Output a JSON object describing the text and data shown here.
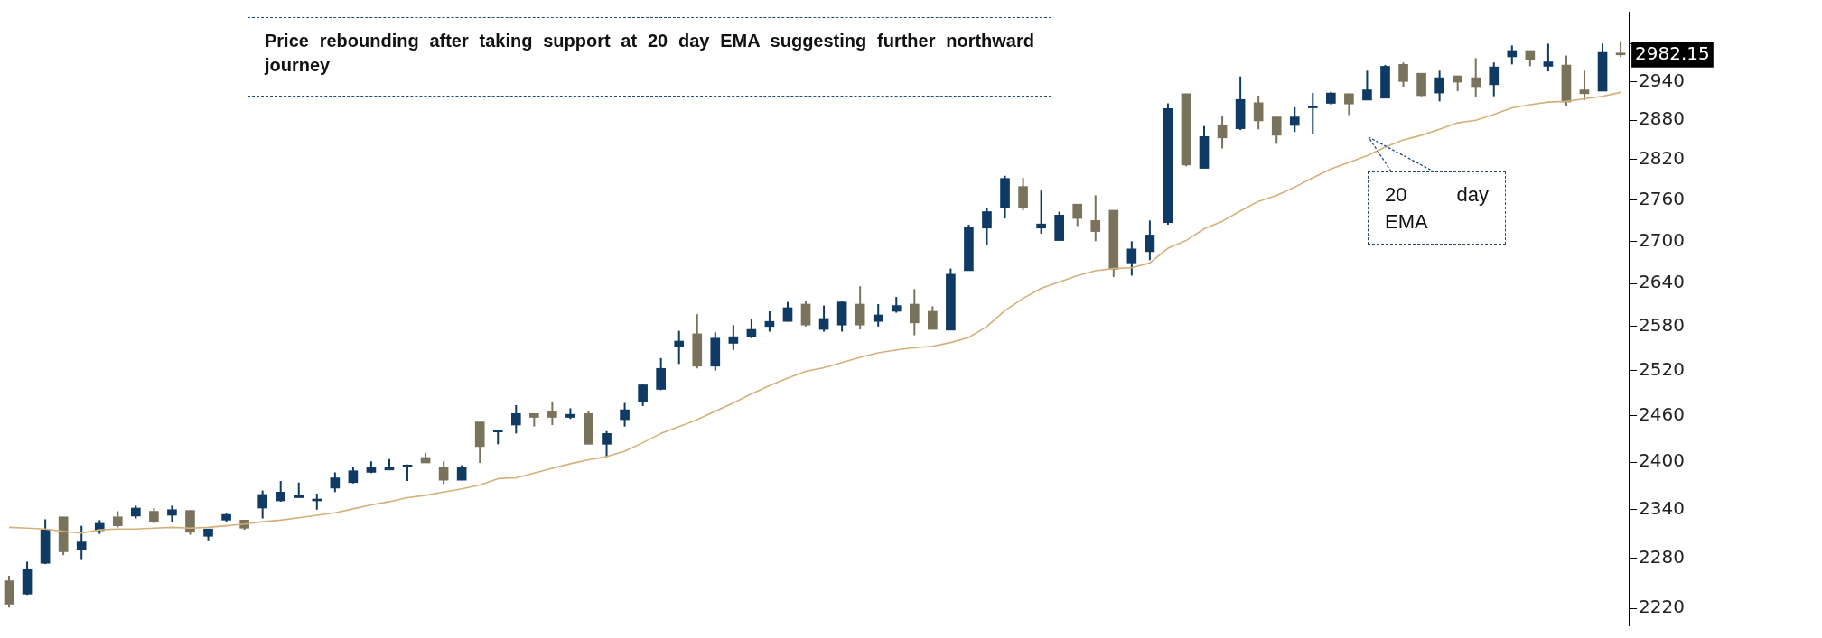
{
  "chart_data": {
    "type": "candlestick",
    "categories": [
      null,
      null,
      null,
      null,
      null,
      null,
      null,
      null,
      null,
      null,
      null,
      null,
      null,
      null,
      null,
      null,
      null,
      null,
      null,
      null,
      null,
      null,
      null,
      null,
      null,
      null,
      null,
      null,
      null,
      null,
      null,
      null,
      null,
      null,
      null,
      null,
      null,
      null,
      null,
      null,
      null,
      null,
      null,
      null,
      null,
      null,
      null,
      null,
      null,
      null,
      null,
      null,
      null,
      null,
      null,
      null,
      null,
      null,
      null,
      null,
      null,
      null,
      null,
      null,
      null,
      null,
      null,
      null,
      null,
      null,
      null,
      null,
      null,
      null,
      null,
      null,
      null,
      null,
      null,
      null,
      null,
      null,
      null,
      null,
      null,
      null,
      null,
      null,
      null,
      null
    ],
    "ohlc": [
      [
        2253,
        2259,
        2221,
        2225
      ],
      [
        2237,
        2276,
        2236,
        2267
      ],
      [
        2274,
        2328,
        2273,
        2315
      ],
      [
        2331,
        2331,
        2284,
        2288
      ],
      [
        2290,
        2320,
        2278,
        2300
      ],
      [
        2314,
        2327,
        2310,
        2323
      ],
      [
        2331,
        2338,
        2318,
        2320
      ],
      [
        2332,
        2345,
        2329,
        2342
      ],
      [
        2338,
        2342,
        2323,
        2325
      ],
      [
        2333,
        2345,
        2325,
        2340
      ],
      [
        2339,
        2339,
        2309,
        2312
      ],
      [
        2307,
        2316,
        2302,
        2316
      ],
      [
        2327,
        2335,
        2325,
        2334
      ],
      [
        2327,
        2327,
        2315,
        2317
      ],
      [
        2342,
        2364,
        2329,
        2359
      ],
      [
        2351,
        2376,
        2350,
        2362
      ],
      [
        2355,
        2374,
        2355,
        2358
      ],
      [
        2351,
        2360,
        2340,
        2352
      ],
      [
        2367,
        2387,
        2362,
        2380
      ],
      [
        2374,
        2394,
        2373,
        2389
      ],
      [
        2387,
        2401,
        2386,
        2394
      ],
      [
        2390,
        2404,
        2390,
        2394
      ],
      [
        2394,
        2397,
        2376,
        2395
      ],
      [
        2406,
        2412,
        2399,
        2399
      ],
      [
        2394,
        2401,
        2372,
        2377
      ],
      [
        2377,
        2396,
        2377,
        2394
      ],
      [
        2452,
        2452,
        2399,
        2420
      ],
      [
        2439,
        2442,
        2423,
        2440
      ],
      [
        2448,
        2474,
        2437,
        2463
      ],
      [
        2463,
        2463,
        2446,
        2458
      ],
      [
        2466,
        2479,
        2448,
        2458
      ],
      [
        2458,
        2470,
        2456,
        2462
      ],
      [
        2463,
        2466,
        2423,
        2423
      ],
      [
        2423,
        2440,
        2407,
        2437
      ],
      [
        2455,
        2477,
        2446,
        2468
      ],
      [
        2479,
        2502,
        2473,
        2501
      ],
      [
        2495,
        2537,
        2494,
        2523
      ],
      [
        2553,
        2574,
        2529,
        2560
      ],
      [
        2570,
        2597,
        2523,
        2526
      ],
      [
        2526,
        2572,
        2520,
        2564
      ],
      [
        2557,
        2582,
        2548,
        2566
      ],
      [
        2566,
        2591,
        2564,
        2576
      ],
      [
        2580,
        2601,
        2573,
        2587
      ],
      [
        2587,
        2614,
        2587,
        2606
      ],
      [
        2611,
        2615,
        2580,
        2582
      ],
      [
        2576,
        2609,
        2573,
        2591
      ],
      [
        2582,
        2615,
        2573,
        2614
      ],
      [
        2611,
        2636,
        2576,
        2582
      ],
      [
        2587,
        2611,
        2580,
        2596
      ],
      [
        2601,
        2621,
        2599,
        2609
      ],
      [
        2611,
        2632,
        2568,
        2585
      ],
      [
        2601,
        2608,
        2576,
        2576
      ],
      [
        2575,
        2661,
        2575,
        2653
      ],
      [
        2658,
        2724,
        2658,
        2720
      ],
      [
        2719,
        2748,
        2694,
        2743
      ],
      [
        2749,
        2796,
        2733,
        2792
      ],
      [
        2780,
        2793,
        2745,
        2749
      ],
      [
        2719,
        2774,
        2711,
        2725
      ],
      [
        2701,
        2743,
        2701,
        2738
      ],
      [
        2754,
        2754,
        2722,
        2733
      ],
      [
        2730,
        2767,
        2700,
        2714
      ],
      [
        2745,
        2745,
        2649,
        2660
      ],
      [
        2669,
        2700,
        2651,
        2689
      ],
      [
        2685,
        2730,
        2673,
        2709
      ],
      [
        2727,
        2906,
        2724,
        2898
      ],
      [
        2921,
        2921,
        2810,
        2812
      ],
      [
        2807,
        2871,
        2807,
        2855
      ],
      [
        2873,
        2887,
        2837,
        2853
      ],
      [
        2867,
        2948,
        2865,
        2912
      ],
      [
        2907,
        2918,
        2866,
        2879
      ],
      [
        2885,
        2885,
        2844,
        2857
      ],
      [
        2872,
        2900,
        2862,
        2885
      ],
      [
        2899,
        2922,
        2859,
        2900
      ],
      [
        2906,
        2924,
        2904,
        2922
      ],
      [
        2921,
        2921,
        2888,
        2905
      ],
      [
        2911,
        2957,
        2911,
        2927
      ],
      [
        2914,
        2966,
        2914,
        2964
      ],
      [
        2967,
        2970,
        2932,
        2940
      ],
      [
        2953,
        2953,
        2917,
        2918
      ],
      [
        2922,
        2957,
        2909,
        2946
      ],
      [
        2949,
        2949,
        2925,
        2939
      ],
      [
        2946,
        2977,
        2916,
        2932
      ],
      [
        2935,
        2970,
        2917,
        2963
      ],
      [
        2979,
        2997,
        2967,
        2989
      ],
      [
        2989,
        2989,
        2964,
        2974
      ],
      [
        2964,
        3000,
        2956,
        2971
      ],
      [
        2966,
        2981,
        2902,
        2908
      ],
      [
        2927,
        2957,
        2911,
        2921
      ],
      [
        2925,
        3000,
        2925,
        2986
      ],
      [
        2984,
        3004,
        2979,
        2982.15
      ]
    ],
    "colors": [
      "#7a735c",
      "#0f3a63",
      "#0f3a63",
      "#7a735c",
      "#0f3a63",
      "#0f3a63",
      "#7a735c",
      "#0f3a63",
      "#7a735c",
      "#0f3a63",
      "#7a735c",
      "#0f3a63",
      "#0f3a63",
      "#7a735c",
      "#0f3a63",
      "#0f3a63",
      "#0f3a63",
      "#0f3a63",
      "#0f3a63",
      "#0f3a63",
      "#0f3a63",
      "#0f3a63",
      "#0f3a63",
      "#7a735c",
      "#7a735c",
      "#0f3a63",
      "#7a735c",
      "#0f3a63",
      "#0f3a63",
      "#7a735c",
      "#7a735c",
      "#0f3a63",
      "#7a735c",
      "#0f3a63",
      "#0f3a63",
      "#0f3a63",
      "#0f3a63",
      "#0f3a63",
      "#7a735c",
      "#0f3a63",
      "#0f3a63",
      "#0f3a63",
      "#0f3a63",
      "#0f3a63",
      "#7a735c",
      "#0f3a63",
      "#0f3a63",
      "#7a735c",
      "#0f3a63",
      "#0f3a63",
      "#7a735c",
      "#7a735c",
      "#0f3a63",
      "#0f3a63",
      "#0f3a63",
      "#0f3a63",
      "#7a735c",
      "#0f3a63",
      "#0f3a63",
      "#7a735c",
      "#7a735c",
      "#7a735c",
      "#0f3a63",
      "#0f3a63",
      "#0f3a63",
      "#7a735c",
      "#0f3a63",
      "#7a735c",
      "#0f3a63",
      "#7a735c",
      "#7a735c",
      "#0f3a63",
      "#0f3a63",
      "#0f3a63",
      "#7a735c",
      "#0f3a63",
      "#0f3a63",
      "#7a735c",
      "#7a735c",
      "#0f3a63",
      "#7a735c",
      "#7a735c",
      "#0f3a63",
      "#0f3a63",
      "#7a735c",
      "#0f3a63",
      "#7a735c",
      "#7a735c",
      "#0f3a63",
      "#7a735c"
    ],
    "series": [
      {
        "type": "line",
        "color": "#d4b07a",
        "values": [
          2318,
          2317,
          2316,
          2313,
          2311,
          2315,
          2316,
          2316,
          2317,
          2318,
          2317,
          2318,
          2320,
          2322,
          2325,
          2327,
          2330,
          2333,
          2336,
          2341,
          2346,
          2350,
          2355,
          2358,
          2362,
          2366,
          2371,
          2379,
          2380,
          2386,
          2392,
          2398,
          2403,
          2407,
          2414,
          2425,
          2437,
          2446,
          2455,
          2466,
          2477,
          2489,
          2500,
          2510,
          2519,
          2524,
          2531,
          2538,
          2544,
          2548,
          2551,
          2553,
          2558,
          2565,
          2580,
          2602,
          2619,
          2633,
          2642,
          2651,
          2658,
          2661,
          2662,
          2669,
          2690,
          2701,
          2718,
          2729,
          2744,
          2758,
          2767,
          2779,
          2793,
          2806,
          2816,
          2826,
          2839,
          2850,
          2857,
          2866,
          2876,
          2880,
          2889,
          2899,
          2904,
          2908,
          2909,
          2913,
          2917,
          2923
        ]
      }
    ],
    "log": true,
    "ylim": [
      2200,
      3050
    ],
    "yticks": [
      2220,
      2280,
      2340,
      2400,
      2460,
      2520,
      2580,
      2640,
      2700,
      2760,
      2820,
      2880,
      2940,
      {
        "value": 3000,
        "label": null
      }
    ],
    "tick_labels": "y",
    "annotations": [
      "Price rebounding after taking support at 20 day EMA suggesting further northward journey",
      "20 day EMA",
      "2982.15"
    ]
  }
}
